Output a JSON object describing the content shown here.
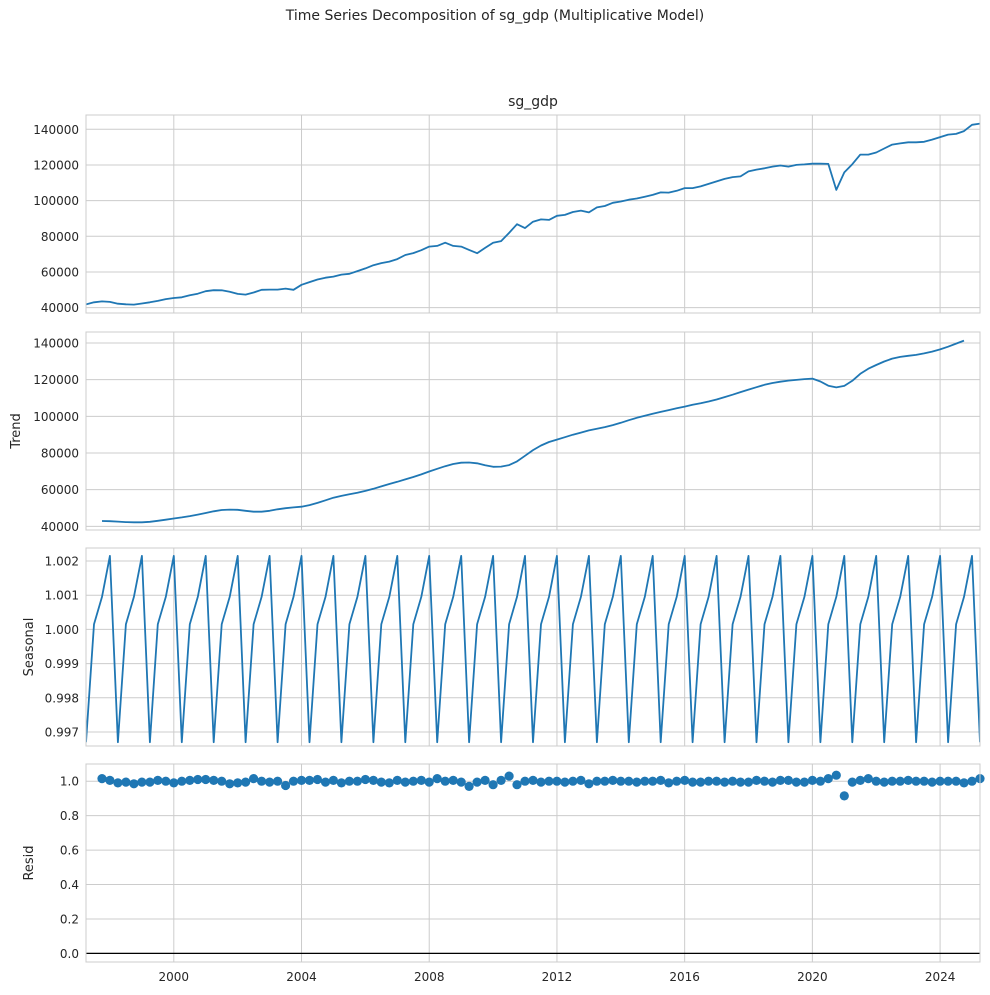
{
  "suptitle": "Time Series Decomposition of sg_gdp (Multiplicative Model)",
  "colors": {
    "line": "#1f77b4",
    "grid": "#cccccc",
    "frame": "#cccccc",
    "zero": "#000000"
  },
  "x_axis": {
    "ticks": [
      2000,
      2004,
      2008,
      2012,
      2016,
      2020,
      2024
    ],
    "range": [
      1997.25,
      2025.25
    ],
    "grid": true
  },
  "chart_data": [
    {
      "type": "line",
      "title": "sg_gdp",
      "ylabel": "",
      "ylim": [
        37000,
        148000
      ],
      "yticks": [
        40000,
        60000,
        80000,
        100000,
        120000,
        140000
      ],
      "grid": true,
      "series": [
        {
          "x_start": 1997.25,
          "x_step": 0.25,
          "values": [
            41800,
            43000,
            43500,
            43200,
            42200,
            41900,
            41700,
            42300,
            43000,
            43800,
            44800,
            45400,
            45800,
            47000,
            47800,
            49200,
            49800,
            49700,
            48900,
            47700,
            47300,
            48500,
            50000,
            50100,
            50100,
            50700,
            50000,
            52800,
            54300,
            55800,
            56800,
            57400,
            58500,
            59000,
            60500,
            62000,
            63800,
            65000,
            65800,
            67200,
            69500,
            70600,
            72200,
            74200,
            74600,
            76400,
            74600,
            74200,
            72400,
            70500,
            73500,
            76400,
            77300,
            81900,
            86800,
            84600,
            88200,
            89500,
            89200,
            91500,
            92000,
            93600,
            94400,
            93400,
            96200,
            97000,
            98800,
            99500,
            100500,
            101200,
            102200,
            103200,
            104600,
            104500,
            105500,
            107000,
            107000,
            108000,
            109400,
            110800,
            112200,
            113200,
            113600,
            116400,
            117400,
            118100,
            119100,
            119700,
            119100,
            120000,
            120300,
            120700,
            120700,
            120600,
            106000,
            115800,
            120400,
            125800,
            125800,
            127000,
            129200,
            131400,
            132100,
            132700,
            132700,
            133000,
            134200,
            135600,
            137000,
            137400,
            139000,
            142500,
            143200,
            142400
          ]
        }
      ]
    },
    {
      "type": "line",
      "title": "",
      "ylabel": "Trend",
      "ylim": [
        38000,
        146000
      ],
      "yticks": [
        40000,
        60000,
        80000,
        100000,
        120000,
        140000
      ],
      "grid": true,
      "series": [
        {
          "x_start": 1997.75,
          "x_step": 0.25,
          "values": [
            42900,
            42800,
            42600,
            42300,
            42200,
            42200,
            42500,
            43000,
            43600,
            44300,
            44900,
            45600,
            46400,
            47300,
            48200,
            48900,
            49100,
            49000,
            48500,
            48000,
            48000,
            48500,
            49300,
            49900,
            50300,
            50700,
            51600,
            52800,
            54200,
            55600,
            56600,
            57500,
            58300,
            59300,
            60500,
            61800,
            63100,
            64300,
            65600,
            66900,
            68300,
            69900,
            71400,
            72800,
            74000,
            74700,
            74800,
            74400,
            73300,
            72500,
            72600,
            73400,
            75400,
            78500,
            81600,
            84100,
            86000,
            87300,
            88600,
            90000,
            91100,
            92300,
            93200,
            94100,
            95200,
            96500,
            97900,
            99200,
            100300,
            101400,
            102400,
            103400,
            104400,
            105300,
            106300,
            107100,
            108100,
            109200,
            110500,
            111800,
            113200,
            114600,
            115900,
            117200,
            118200,
            118900,
            119500,
            119900,
            120300,
            120600,
            119000,
            116700,
            115800,
            116600,
            119400,
            123200,
            126000,
            128000,
            129900,
            131500,
            132400,
            133000,
            133500,
            134300,
            135300,
            136500,
            138000,
            139700,
            141300
          ]
        }
      ]
    },
    {
      "type": "line",
      "title": "",
      "ylabel": "Seasonal",
      "ylim": [
        0.99659,
        1.00238
      ],
      "yticks": [
        0.997,
        0.998,
        0.999,
        1.0,
        1.001,
        1.002
      ],
      "ytick_labels": [
        "0.997",
        "0.998",
        "0.999",
        "1.000",
        "1.001",
        "1.002"
      ],
      "grid": true,
      "series": [
        {
          "x_start": 1997.25,
          "x_step": 0.25,
          "pattern": [
            0.9967,
            1.00015,
            1.00095,
            1.00215
          ]
        }
      ]
    },
    {
      "type": "scatter",
      "title": "",
      "ylabel": "Resid",
      "ylim": [
        -0.05,
        1.1
      ],
      "yticks": [
        0.0,
        0.2,
        0.4,
        0.6,
        0.8,
        1.0
      ],
      "ytick_labels": [
        "0.0",
        "0.2",
        "0.4",
        "0.6",
        "0.8",
        "1.0"
      ],
      "grid": true,
      "zero_line": 0.0,
      "series": [
        {
          "x_start": 1997.75,
          "x_step": 0.25,
          "values": [
            1.015,
            1.005,
            0.99,
            0.995,
            0.985,
            0.995,
            0.995,
            1.005,
            1.0,
            0.99,
            1.0,
            1.005,
            1.01,
            1.01,
            1.005,
            1.0,
            0.985,
            0.99,
            0.995,
            1.015,
            1.0,
            0.995,
            1.0,
            0.975,
            1.0,
            1.005,
            1.005,
            1.01,
            0.995,
            1.005,
            0.99,
            1.0,
            1.0,
            1.01,
            1.005,
            0.995,
            0.99,
            1.005,
            0.995,
            1.0,
            1.005,
            0.995,
            1.015,
            1.0,
            1.005,
            0.995,
            0.97,
            0.995,
            1.005,
            0.98,
            1.005,
            1.03,
            0.98,
            1.0,
            1.005,
            0.995,
            1.0,
            1.0,
            0.995,
            1.0,
            1.005,
            0.985,
            1.0,
            1.0,
            1.005,
            1.0,
            1.0,
            0.995,
            1.0,
            1.0,
            1.005,
            0.99,
            1.0,
            1.005,
            0.995,
            0.995,
            1.0,
            1.0,
            0.995,
            1.0,
            0.995,
            0.995,
            1.005,
            1.0,
            0.995,
            1.005,
            1.005,
            0.995,
            0.995,
            1.005,
            1.0,
            1.015,
            1.035,
            0.915,
            0.995,
            1.005,
            1.015,
            1.0,
            0.995,
            1.0,
            1.0,
            1.005,
            1.0,
            1.0,
            0.995,
            1.0,
            1.0,
            1.0,
            0.99,
            1.0,
            1.015
          ]
        }
      ]
    }
  ]
}
